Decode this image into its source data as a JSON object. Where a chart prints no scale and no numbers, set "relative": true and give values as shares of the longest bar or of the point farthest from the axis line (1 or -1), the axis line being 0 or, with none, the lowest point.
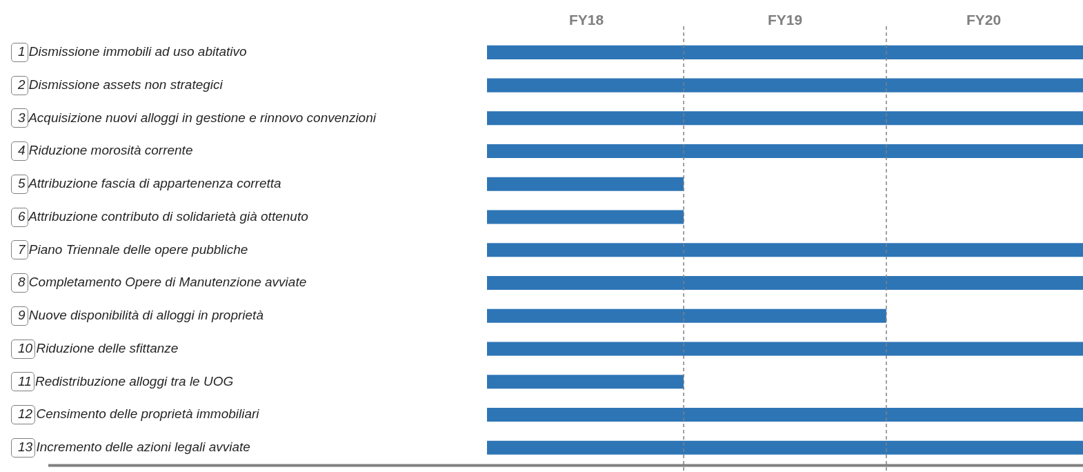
{
  "chart_data": {
    "type": "bar",
    "orientation": "horizontal",
    "categories": [
      "1 Dismissione immobili ad uso abitativo",
      "2 Dismissione assets non strategici",
      "3 Acquisizione nuovi alloggi in gestione e rinnovo convenzioni",
      "4 Riduzione morosità corrente",
      "5 Attribuzione fascia di appartenenza corretta",
      "6 Attribuzione contributo di solidarietà già ottenuto",
      "7 Piano Triennale delle opere pubbliche",
      "8 Completamento Opere di Manutenzione avviate",
      "9 Nuove disponibilità di alloggi in proprietà",
      "10 Riduzione delle sfittanze",
      "11 Redistribuzione alloggi tra le UOG",
      "12 Censimento delle proprietà immobiliari",
      "13 Incremento delle azioni legali avviate"
    ],
    "values": [
      1,
      1,
      1,
      1,
      0.33,
      0.33,
      1,
      1,
      0.67,
      1,
      0.33,
      1,
      1
    ],
    "relative": true,
    "annotations": [
      "FY18",
      "FY19",
      "FY20"
    ],
    "color": "#2e75b6",
    "ref_lines": [
      {
        "axis": "x",
        "value": 0.33,
        "label": null,
        "color": "#808080",
        "line_style": "dashed"
      },
      {
        "axis": "x",
        "value": 0.67,
        "label": null,
        "color": "#808080",
        "line_style": "dashed"
      }
    ],
    "grid": false,
    "legend": false
  }
}
